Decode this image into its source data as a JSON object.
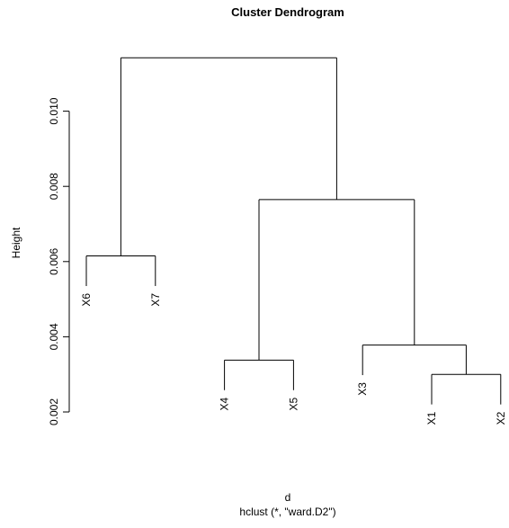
{
  "chart_data": {
    "type": "dendrogram",
    "title": "Cluster Dendrogram",
    "ylabel": "Height",
    "xlabel": "d",
    "sub": "hclust (*, \"ward.D2\")",
    "ylim": [
      0.002,
      0.0115
    ],
    "yticks": [
      0.002,
      0.004,
      0.006,
      0.008,
      0.01
    ],
    "ytick_labels": [
      "0.002",
      "0.004",
      "0.006",
      "0.008",
      "0.010"
    ],
    "leaves": [
      "X6",
      "X7",
      "X4",
      "X5",
      "X3",
      "X1",
      "X2"
    ],
    "leaf_hang": 0.0008,
    "merges": [
      {
        "left": "X6",
        "right": "X7",
        "height": 0.00615
      },
      {
        "left": "X4",
        "right": "X5",
        "height": 0.00338
      },
      {
        "left": "X1",
        "right": "X2",
        "height": 0.003
      },
      {
        "left": "X3",
        "right": "X1+X2",
        "height": 0.00378
      },
      {
        "left": "X4+X5",
        "right": "X3+X1+X2",
        "height": 0.00765
      },
      {
        "left": "X6+X7",
        "right": "X4+X5+X3+X1+X2",
        "height": 0.01142
      }
    ]
  }
}
